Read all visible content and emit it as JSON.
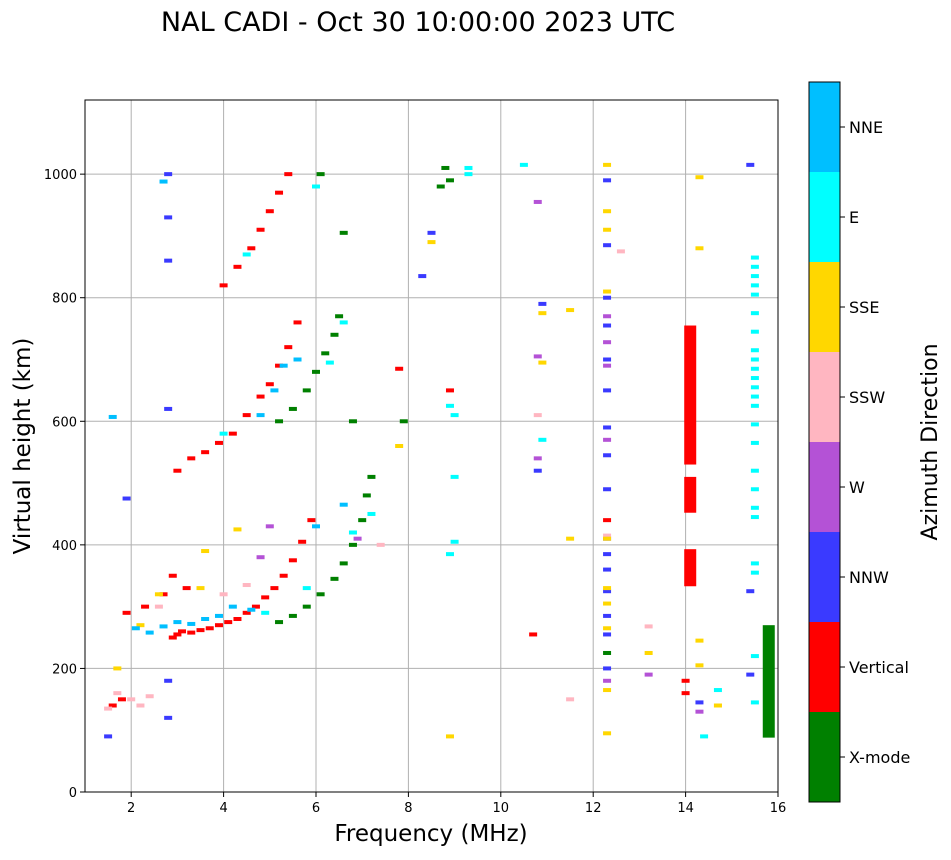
{
  "chart_data": {
    "type": "scatter",
    "title": "NAL CADI - Oct 30 10:00:00 2023 UTC",
    "xlabel": "Frequency (MHz)",
    "ylabel": "Virtual height (km)",
    "xlim": [
      1,
      16
    ],
    "ylim": [
      0,
      1120
    ],
    "xticks": [
      "2",
      "4",
      "6",
      "8",
      "10",
      "12",
      "14",
      "16"
    ],
    "yticks": [
      "0",
      "200",
      "400",
      "600",
      "800",
      "1000"
    ],
    "grid": true,
    "colorbar": {
      "label": "Azimuth Direction",
      "categories": [
        {
          "name": "X-mode",
          "color": "#008000"
        },
        {
          "name": "Vertical",
          "color": "#ff0000"
        },
        {
          "name": "NNW",
          "color": "#3a3aff"
        },
        {
          "name": "W",
          "color": "#b452d6"
        },
        {
          "name": "SSW",
          "color": "#ffb6c1"
        },
        {
          "name": "SSE",
          "color": "#ffd700"
        },
        {
          "name": "E",
          "color": "#00ffff"
        },
        {
          "name": "NNE",
          "color": "#00bfff"
        }
      ]
    },
    "series": [
      {
        "name": "Vertical",
        "points": [
          [
            2.9,
            250
          ],
          [
            3.0,
            255
          ],
          [
            3.1,
            260
          ],
          [
            3.3,
            258
          ],
          [
            3.5,
            262
          ],
          [
            3.7,
            265
          ],
          [
            3.9,
            270
          ],
          [
            4.1,
            275
          ],
          [
            4.3,
            280
          ],
          [
            4.5,
            290
          ],
          [
            4.7,
            300
          ],
          [
            4.9,
            315
          ],
          [
            5.1,
            330
          ],
          [
            5.3,
            350
          ],
          [
            5.5,
            375
          ],
          [
            5.7,
            405
          ],
          [
            5.9,
            440
          ],
          [
            3.0,
            520
          ],
          [
            3.3,
            540
          ],
          [
            3.6,
            550
          ],
          [
            3.9,
            565
          ],
          [
            4.2,
            580
          ],
          [
            4.5,
            610
          ],
          [
            4.8,
            640
          ],
          [
            5.0,
            660
          ],
          [
            5.2,
            690
          ],
          [
            5.4,
            720
          ],
          [
            5.6,
            760
          ],
          [
            4.0,
            820
          ],
          [
            4.3,
            850
          ],
          [
            4.6,
            880
          ],
          [
            4.8,
            910
          ],
          [
            5.0,
            940
          ],
          [
            5.2,
            970
          ],
          [
            5.4,
            1000
          ],
          [
            1.9,
            290
          ],
          [
            2.3,
            300
          ],
          [
            2.7,
            320
          ],
          [
            2.9,
            350
          ],
          [
            3.2,
            330
          ],
          [
            1.6,
            140
          ],
          [
            1.8,
            150
          ],
          [
            12.3,
            440
          ],
          [
            8.9,
            650
          ],
          [
            7.8,
            685
          ],
          [
            10.7,
            255
          ],
          [
            14.0,
            180
          ],
          [
            14.0,
            160
          ]
        ]
      },
      {
        "name": "X-mode",
        "points": [
          [
            5.2,
            275
          ],
          [
            5.5,
            285
          ],
          [
            5.8,
            300
          ],
          [
            6.1,
            320
          ],
          [
            6.4,
            345
          ],
          [
            6.6,
            370
          ],
          [
            6.8,
            400
          ],
          [
            7.0,
            440
          ],
          [
            7.1,
            480
          ],
          [
            7.2,
            510
          ],
          [
            5.2,
            600
          ],
          [
            5.5,
            620
          ],
          [
            5.8,
            650
          ],
          [
            6.0,
            680
          ],
          [
            6.2,
            710
          ],
          [
            6.4,
            740
          ],
          [
            6.5,
            770
          ],
          [
            6.1,
            1000
          ],
          [
            6.6,
            905
          ],
          [
            8.8,
            1010
          ],
          [
            8.9,
            990
          ],
          [
            8.7,
            980
          ],
          [
            6.8,
            600
          ],
          [
            7.9,
            600
          ],
          [
            12.3,
            225
          ]
        ]
      },
      {
        "name": "NNW",
        "points": [
          [
            12.3,
            990
          ],
          [
            12.3,
            885
          ],
          [
            12.3,
            800
          ],
          [
            12.3,
            755
          ],
          [
            12.3,
            700
          ],
          [
            12.3,
            650
          ],
          [
            12.3,
            590
          ],
          [
            12.3,
            545
          ],
          [
            12.3,
            490
          ],
          [
            12.3,
            410
          ],
          [
            12.3,
            385
          ],
          [
            12.3,
            360
          ],
          [
            12.3,
            325
          ],
          [
            12.3,
            285
          ],
          [
            12.3,
            255
          ],
          [
            12.3,
            200
          ],
          [
            15.4,
            1015
          ],
          [
            15.4,
            325
          ],
          [
            15.4,
            190
          ],
          [
            8.5,
            905
          ],
          [
            8.3,
            835
          ],
          [
            10.9,
            790
          ],
          [
            10.8,
            520
          ],
          [
            2.8,
            1000
          ],
          [
            2.8,
            930
          ],
          [
            2.8,
            860
          ],
          [
            2.8,
            620
          ],
          [
            1.9,
            475
          ],
          [
            2.8,
            180
          ],
          [
            2.8,
            120
          ],
          [
            1.5,
            90
          ],
          [
            14.3,
            145
          ]
        ]
      },
      {
        "name": "W",
        "points": [
          [
            12.3,
            770
          ],
          [
            12.3,
            728
          ],
          [
            12.3,
            690
          ],
          [
            12.3,
            570
          ],
          [
            12.3,
            180
          ],
          [
            13.2,
            190
          ],
          [
            14.3,
            130
          ],
          [
            10.8,
            540
          ],
          [
            10.8,
            705
          ],
          [
            10.8,
            955
          ],
          [
            6.9,
            410
          ],
          [
            5.0,
            430
          ],
          [
            4.8,
            380
          ]
        ]
      },
      {
        "name": "SSW",
        "points": [
          [
            12.6,
            875
          ],
          [
            12.3,
            415
          ],
          [
            10.8,
            610
          ],
          [
            11.5,
            150
          ],
          [
            13.2,
            268
          ],
          [
            14.7,
            140
          ],
          [
            1.5,
            135
          ],
          [
            1.7,
            160
          ],
          [
            2.0,
            150
          ],
          [
            2.4,
            155
          ],
          [
            2.2,
            140
          ],
          [
            7.4,
            400
          ],
          [
            4.5,
            335
          ],
          [
            4.0,
            320
          ],
          [
            2.6,
            300
          ]
        ]
      },
      {
        "name": "SSE",
        "points": [
          [
            12.3,
            1015
          ],
          [
            12.3,
            940
          ],
          [
            12.3,
            910
          ],
          [
            12.3,
            810
          ],
          [
            12.3,
            410
          ],
          [
            12.3,
            330
          ],
          [
            12.3,
            305
          ],
          [
            12.3,
            265
          ],
          [
            12.3,
            165
          ],
          [
            12.3,
            95
          ],
          [
            14.3,
            995
          ],
          [
            14.3,
            880
          ],
          [
            14.3,
            245
          ],
          [
            14.3,
            205
          ],
          [
            14.7,
            140
          ],
          [
            13.2,
            225
          ],
          [
            8.5,
            890
          ],
          [
            8.9,
            90
          ],
          [
            10.9,
            775
          ],
          [
            10.9,
            695
          ],
          [
            11.5,
            410
          ],
          [
            11.5,
            780
          ],
          [
            7.8,
            560
          ],
          [
            3.6,
            390
          ],
          [
            4.3,
            425
          ],
          [
            1.7,
            200
          ],
          [
            2.2,
            270
          ],
          [
            2.6,
            320
          ],
          [
            3.5,
            330
          ]
        ]
      },
      {
        "name": "E",
        "points": [
          [
            15.5,
            865
          ],
          [
            15.5,
            850
          ],
          [
            15.5,
            835
          ],
          [
            15.5,
            820
          ],
          [
            15.5,
            805
          ],
          [
            15.5,
            775
          ],
          [
            15.5,
            745
          ],
          [
            15.5,
            715
          ],
          [
            15.5,
            700
          ],
          [
            15.5,
            685
          ],
          [
            15.5,
            670
          ],
          [
            15.5,
            655
          ],
          [
            15.5,
            640
          ],
          [
            15.5,
            625
          ],
          [
            15.5,
            595
          ],
          [
            15.5,
            565
          ],
          [
            15.5,
            520
          ],
          [
            15.5,
            490
          ],
          [
            15.5,
            460
          ],
          [
            15.5,
            445
          ],
          [
            15.5,
            370
          ],
          [
            15.5,
            355
          ],
          [
            15.5,
            220
          ],
          [
            15.5,
            145
          ],
          [
            14.7,
            165
          ],
          [
            14.4,
            90
          ],
          [
            9.3,
            1010
          ],
          [
            9.3,
            1000
          ],
          [
            10.5,
            1015
          ],
          [
            8.9,
            625
          ],
          [
            9.0,
            610
          ],
          [
            9.0,
            510
          ],
          [
            9.0,
            405
          ],
          [
            8.9,
            385
          ],
          [
            10.9,
            570
          ],
          [
            7.2,
            450
          ],
          [
            6.8,
            420
          ],
          [
            6.3,
            695
          ],
          [
            6.6,
            760
          ],
          [
            4.0,
            580
          ],
          [
            4.5,
            870
          ],
          [
            6.0,
            980
          ],
          [
            5.8,
            330
          ],
          [
            4.9,
            290
          ]
        ]
      },
      {
        "name": "NNE",
        "points": [
          [
            2.1,
            265
          ],
          [
            2.4,
            258
          ],
          [
            2.7,
            268
          ],
          [
            3.0,
            275
          ],
          [
            3.3,
            272
          ],
          [
            3.6,
            280
          ],
          [
            3.9,
            285
          ],
          [
            4.2,
            300
          ],
          [
            4.6,
            295
          ],
          [
            5.3,
            690
          ],
          [
            5.6,
            700
          ],
          [
            5.1,
            650
          ],
          [
            4.8,
            610
          ],
          [
            2.7,
            988
          ],
          [
            1.6,
            607
          ],
          [
            6.0,
            430
          ],
          [
            6.6,
            465
          ]
        ]
      }
    ],
    "bars": [
      {
        "name": "Vertical",
        "x": 14.1,
        "y0": 530,
        "y1": 755
      },
      {
        "name": "Vertical",
        "x": 14.1,
        "y0": 452,
        "y1": 510
      },
      {
        "name": "Vertical",
        "x": 14.1,
        "y0": 333,
        "y1": 393
      },
      {
        "name": "X-mode",
        "x": 15.8,
        "y0": 88,
        "y1": 270
      }
    ]
  }
}
